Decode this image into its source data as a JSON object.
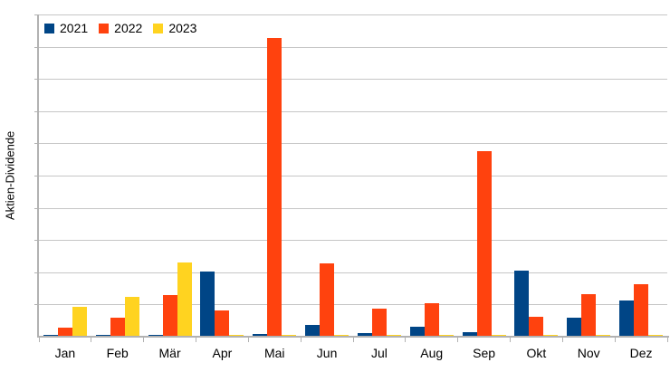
{
  "chart_data": {
    "type": "bar",
    "title": "",
    "xlabel": "",
    "ylabel": "Aktien-Dividende",
    "categories": [
      "Jan",
      "Feb",
      "Mär",
      "Apr",
      "Mai",
      "Jun",
      "Jul",
      "Aug",
      "Sep",
      "Okt",
      "Nov",
      "Dez"
    ],
    "series": [
      {
        "name": "2021",
        "color": "#004586",
        "values": [
          0.6,
          0.6,
          0.6,
          20.3,
          0.8,
          3.7,
          1.1,
          3.1,
          1.5,
          20.5,
          5.9,
          11.2
        ]
      },
      {
        "name": "2022",
        "color": "#FF420E",
        "values": [
          2.8,
          6.0,
          13.0,
          8.1,
          92.6,
          22.8,
          8.7,
          10.3,
          57.5,
          6.1,
          13.3,
          16.2
        ]
      },
      {
        "name": "2023",
        "color": "#FFD320",
        "values": [
          9.2,
          12.4,
          23.1,
          0.6,
          0.6,
          0.6,
          0.6,
          0.6,
          0.6,
          0.6,
          0.6,
          0.6
        ]
      }
    ],
    "ylim": [
      0,
      100
    ],
    "y_gridline_step": 10,
    "y_tick_labels_visible": false,
    "grid": "horizontal",
    "legend_position": "top-left"
  },
  "colors": {
    "background": "#FFFFFF",
    "gridline": "#C6C6C6",
    "axis": "#B2B2B2",
    "text": "#000000",
    "series_2021": "#004586",
    "series_2022": "#FF420E",
    "series_2023": "#FFD320"
  }
}
